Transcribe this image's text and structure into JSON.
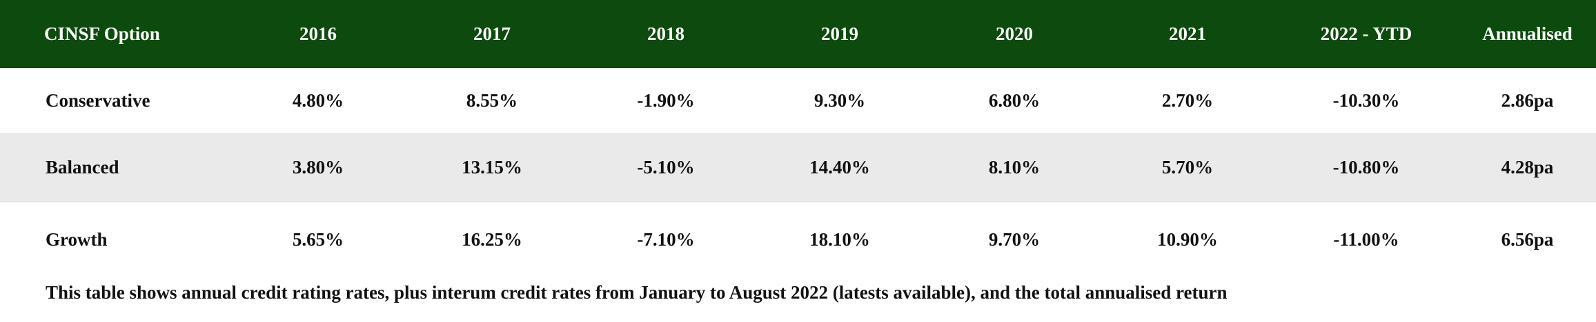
{
  "table": {
    "headers": [
      "CINSF Option",
      "2016",
      "2017",
      "2018",
      "2019",
      "2020",
      "2021",
      "2022 - YTD",
      "Annualised"
    ],
    "rows": [
      [
        "Conservative",
        "4.80%",
        "8.55%",
        "-1.90%",
        "9.30%",
        "6.80%",
        "2.70%",
        "-10.30%",
        "2.86pa"
      ],
      [
        "Balanced",
        "3.80%",
        "13.15%",
        "-5.10%",
        "14.40%",
        "8.10%",
        "5.70%",
        "-10.80%",
        "4.28pa"
      ],
      [
        "Growth",
        "5.65%",
        "16.25%",
        "-7.10%",
        "18.10%",
        "9.70%",
        "10.90%",
        "-11.00%",
        "6.56pa"
      ]
    ],
    "colors": {
      "header_bg": "#0d4a0d",
      "stripe_bg": "#eaeaea"
    }
  },
  "caption": "This table shows annual credit rating rates, plus interum credit rates from January to August 2022 (latests available), and the total annualised return"
}
